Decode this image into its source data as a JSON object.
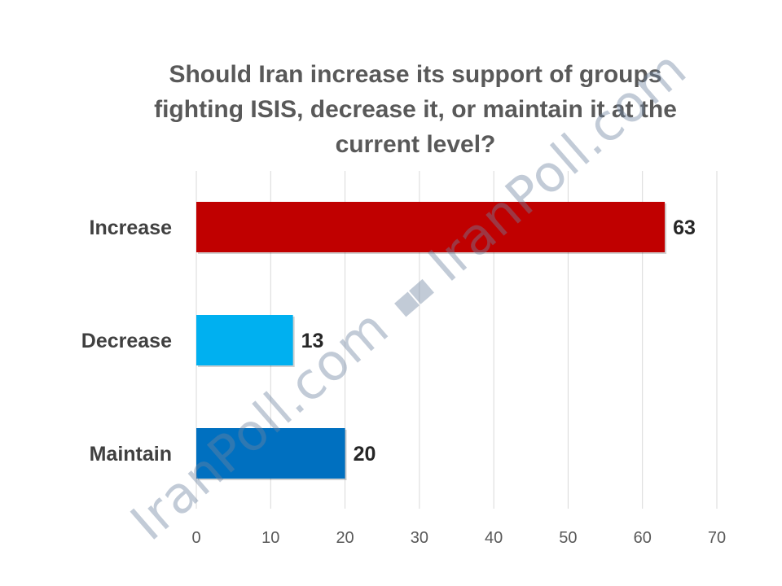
{
  "chart_data": {
    "type": "bar",
    "orientation": "horizontal",
    "title": "Should Iran increase its support of groups fighting ISIS, decrease it, or maintain it at the current level?",
    "categories": [
      "Increase",
      "Decrease",
      "Maintain"
    ],
    "values": [
      63,
      13,
      20
    ],
    "colors": [
      "#C00000",
      "#00B0F0",
      "#0070C0"
    ],
    "xlim": [
      0,
      70
    ],
    "ticks": [
      "0",
      "10",
      "20",
      "30",
      "40",
      "50",
      "60",
      "70"
    ],
    "grid": true,
    "legend": "none",
    "data_labels": true
  },
  "watermark": {
    "left": "IranPoll.com",
    "separator": "▪▪",
    "right": "IranPoll.com"
  }
}
